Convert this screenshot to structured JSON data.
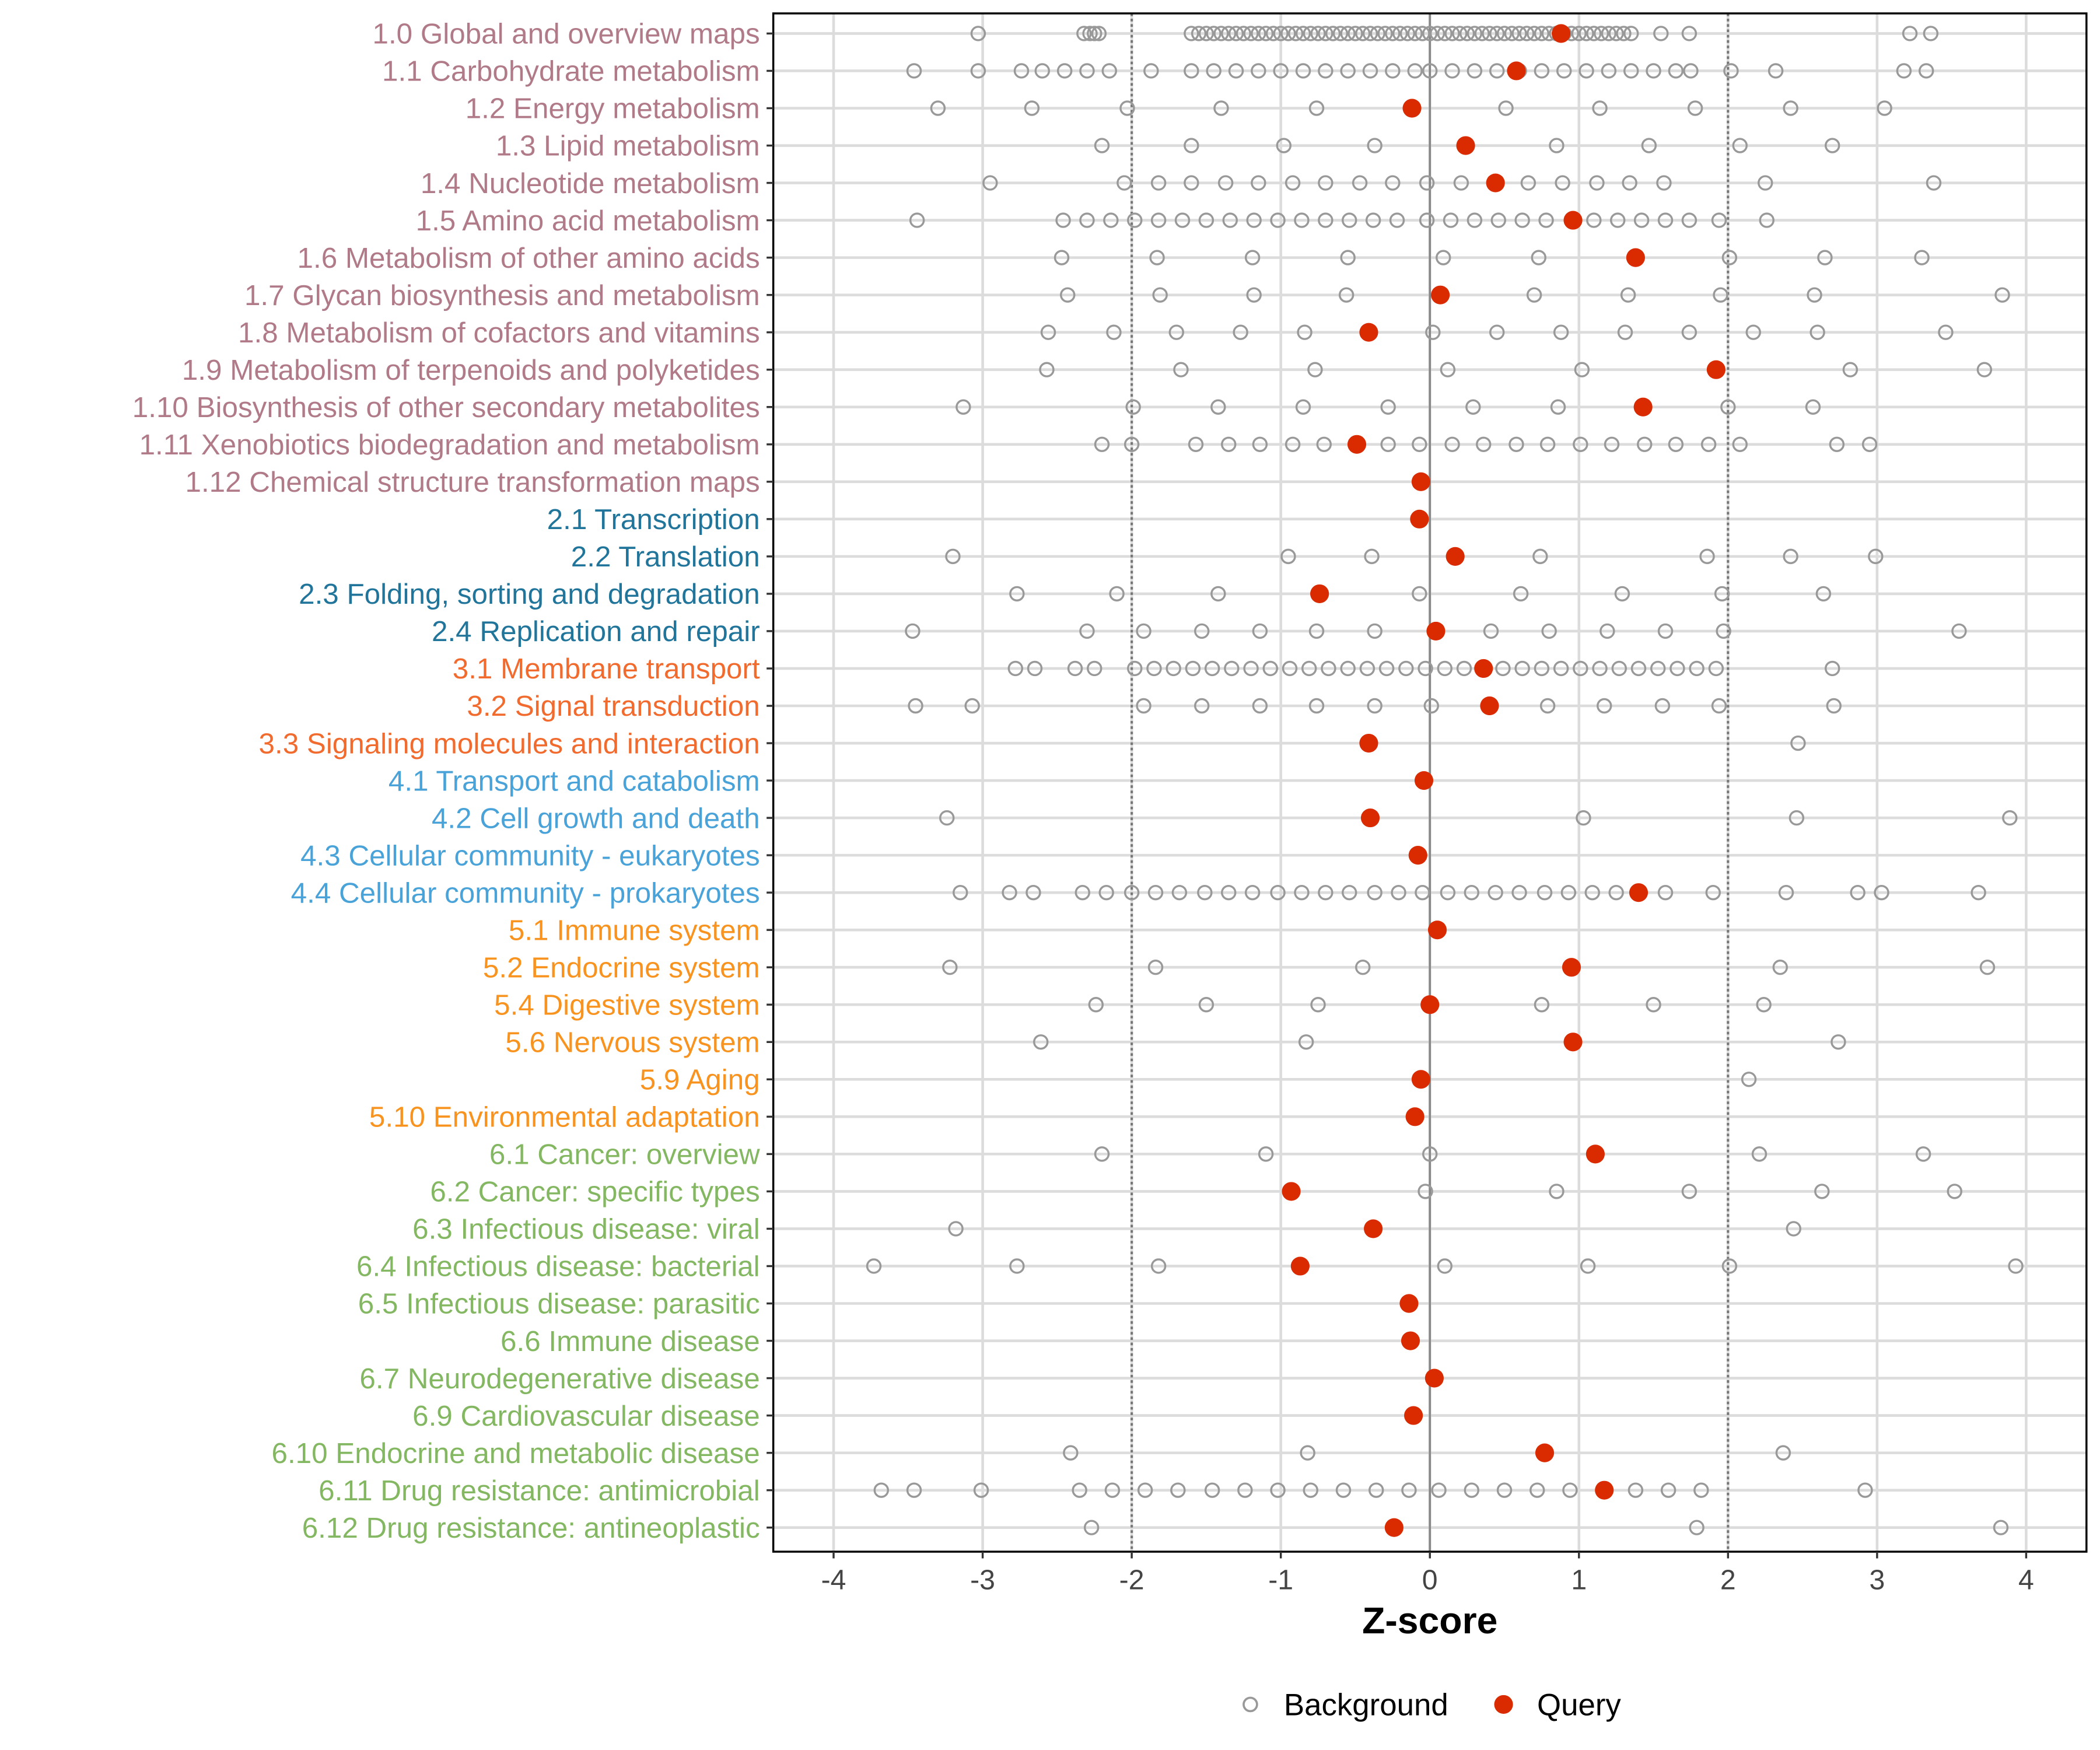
{
  "chart_data": {
    "type": "scatter",
    "xlabel": "Z-score",
    "ylabel": "",
    "xlim": [
      -4.4,
      4.4
    ],
    "x_ticks": [
      -4,
      -3,
      -2,
      -1,
      0,
      1,
      2,
      3,
      4
    ],
    "threshold_lines": [
      -2,
      2
    ],
    "grid": true,
    "legend": {
      "placement": "bottom",
      "entries": [
        "Background",
        "Query"
      ]
    },
    "colors": {
      "query": "#d92a00",
      "background": "#999999",
      "groups": {
        "1": "#b07a88",
        "2": "#22759a",
        "3": "#f26b2e",
        "4": "#4aa3d8",
        "5": "#f7931e",
        "6": "#84b761"
      }
    },
    "categories": [
      {
        "label": "1.0 Global and overview maps",
        "group": "1",
        "query": 0.88,
        "background": [
          -3.03,
          -2.32,
          -2.28,
          -2.25,
          -2.22,
          -1.6,
          -1.55,
          -1.5,
          -1.45,
          -1.4,
          -1.35,
          -1.3,
          -1.25,
          -1.2,
          -1.15,
          -1.1,
          -1.05,
          -1.0,
          -0.95,
          -0.9,
          -0.85,
          -0.8,
          -0.75,
          -0.7,
          -0.65,
          -0.6,
          -0.55,
          -0.5,
          -0.45,
          -0.4,
          -0.35,
          -0.3,
          -0.25,
          -0.2,
          -0.15,
          -0.1,
          -0.05,
          0.0,
          0.05,
          0.1,
          0.15,
          0.2,
          0.25,
          0.3,
          0.35,
          0.4,
          0.45,
          0.5,
          0.55,
          0.6,
          0.65,
          0.7,
          0.75,
          0.8,
          0.85,
          0.9,
          0.95,
          1.0,
          1.05,
          1.1,
          1.15,
          1.2,
          1.25,
          1.3,
          1.35,
          1.55,
          1.74,
          3.22,
          3.36
        ]
      },
      {
        "label": "1.1 Carbohydrate metabolism",
        "group": "1",
        "query": 0.58,
        "background": [
          -3.46,
          -3.03,
          -2.74,
          -2.6,
          -2.45,
          -2.3,
          -2.15,
          -1.87,
          -1.6,
          -1.45,
          -1.3,
          -1.15,
          -1.0,
          -0.85,
          -0.7,
          -0.55,
          -0.4,
          -0.25,
          -0.1,
          0.0,
          0.15,
          0.3,
          0.45,
          0.6,
          0.75,
          0.9,
          1.05,
          1.2,
          1.35,
          1.5,
          1.65,
          1.75,
          2.02,
          2.32,
          3.18,
          3.33
        ]
      },
      {
        "label": "1.2 Energy metabolism",
        "group": "1",
        "query": -0.12,
        "background": [
          -3.3,
          -2.67,
          -2.03,
          -1.4,
          -0.76,
          0.51,
          1.14,
          1.78,
          2.42,
          3.05
        ]
      },
      {
        "label": "1.3 Lipid metabolism",
        "group": "1",
        "query": 0.24,
        "background": [
          -2.2,
          -1.6,
          -0.98,
          -0.37,
          0.85,
          1.47,
          2.08,
          2.7
        ]
      },
      {
        "label": "1.4 Nucleotide metabolism",
        "group": "1",
        "query": 0.44,
        "background": [
          -2.95,
          -2.05,
          -1.82,
          -1.6,
          -1.37,
          -1.15,
          -0.92,
          -0.7,
          -0.47,
          -0.25,
          -0.02,
          0.21,
          0.66,
          0.89,
          1.12,
          1.34,
          1.57,
          2.25,
          3.38
        ]
      },
      {
        "label": "1.5 Amino acid metabolism",
        "group": "1",
        "query": 0.96,
        "background": [
          -3.44,
          -2.46,
          -2.3,
          -2.14,
          -1.98,
          -1.82,
          -1.66,
          -1.5,
          -1.34,
          -1.18,
          -1.02,
          -0.86,
          -0.7,
          -0.54,
          -0.38,
          -0.22,
          -0.02,
          0.14,
          0.3,
          0.46,
          0.62,
          0.78,
          1.1,
          1.26,
          1.42,
          1.58,
          1.74,
          1.94,
          2.26
        ]
      },
      {
        "label": "1.6 Metabolism of other amino acids",
        "group": "1",
        "query": 1.38,
        "background": [
          -2.47,
          -1.83,
          -1.19,
          -0.55,
          0.09,
          0.73,
          2.01,
          2.65,
          3.3
        ]
      },
      {
        "label": "1.7 Glycan biosynthesis and metabolism",
        "group": "1",
        "query": 0.07,
        "background": [
          -2.43,
          -1.81,
          -1.18,
          -0.56,
          0.7,
          1.33,
          1.95,
          2.58,
          3.84
        ]
      },
      {
        "label": "1.8 Metabolism of cofactors and vitamins",
        "group": "1",
        "query": -0.41,
        "background": [
          -2.56,
          -2.12,
          -1.7,
          -1.27,
          -0.84,
          0.02,
          0.45,
          0.88,
          1.31,
          1.74,
          2.17,
          2.6,
          3.46
        ]
      },
      {
        "label": "1.9 Metabolism of terpenoids and polyketides",
        "group": "1",
        "query": 1.92,
        "background": [
          -2.57,
          -1.67,
          -0.77,
          0.12,
          1.02,
          2.82,
          3.72
        ]
      },
      {
        "label": "1.10 Biosynthesis of other secondary metabolites",
        "group": "1",
        "query": 1.43,
        "background": [
          -3.13,
          -1.99,
          -1.42,
          -0.85,
          -0.28,
          0.29,
          0.86,
          2.0,
          2.57
        ]
      },
      {
        "label": "1.11 Xenobiotics biodegradation and metabolism",
        "group": "1",
        "query": -0.49,
        "background": [
          -2.2,
          -2.0,
          -1.57,
          -1.35,
          -1.14,
          -0.92,
          -0.71,
          -0.28,
          -0.07,
          0.15,
          0.36,
          0.58,
          0.79,
          1.01,
          1.22,
          1.44,
          1.65,
          1.87,
          2.08,
          2.73,
          2.95
        ]
      },
      {
        "label": "1.12 Chemical structure transformation maps",
        "group": "1",
        "query": -0.06,
        "background": []
      },
      {
        "label": "2.1 Transcription",
        "group": "2",
        "query": -0.07,
        "background": []
      },
      {
        "label": "2.2 Translation",
        "group": "2",
        "query": 0.17,
        "background": [
          -3.2,
          -0.95,
          -0.39,
          0.74,
          1.86,
          2.42,
          2.99
        ]
      },
      {
        "label": "2.3 Folding, sorting and degradation",
        "group": "2",
        "query": -0.74,
        "background": [
          -2.77,
          -2.1,
          -1.42,
          -0.07,
          0.61,
          1.29,
          1.96,
          2.64
        ]
      },
      {
        "label": "2.4 Replication and repair",
        "group": "2",
        "query": 0.04,
        "background": [
          -3.47,
          -2.3,
          -1.92,
          -1.53,
          -1.14,
          -0.76,
          -0.37,
          0.41,
          0.8,
          1.19,
          1.58,
          1.97,
          3.55
        ]
      },
      {
        "label": "3.1 Membrane transport",
        "group": "3",
        "query": 0.36,
        "background": [
          -2.78,
          -2.65,
          -2.38,
          -2.25,
          -1.98,
          -1.85,
          -1.72,
          -1.59,
          -1.46,
          -1.33,
          -1.2,
          -1.07,
          -0.94,
          -0.81,
          -0.68,
          -0.55,
          -0.42,
          -0.29,
          -0.16,
          -0.03,
          0.1,
          0.23,
          0.49,
          0.62,
          0.75,
          0.88,
          1.01,
          1.14,
          1.27,
          1.4,
          1.53,
          1.66,
          1.79,
          1.92,
          2.7
        ]
      },
      {
        "label": "3.2 Signal transduction",
        "group": "3",
        "query": 0.4,
        "background": [
          -3.45,
          -3.07,
          -1.92,
          -1.53,
          -1.14,
          -0.76,
          -0.37,
          0.01,
          0.79,
          1.17,
          1.56,
          1.94,
          2.71
        ]
      },
      {
        "label": "3.3 Signaling molecules and interaction",
        "group": "3",
        "query": -0.41,
        "background": [
          2.47
        ]
      },
      {
        "label": "4.1 Transport and catabolism",
        "group": "4",
        "query": -0.04,
        "background": []
      },
      {
        "label": "4.2 Cell growth and death",
        "group": "4",
        "query": -0.4,
        "background": [
          -3.24,
          1.03,
          2.46,
          3.89
        ]
      },
      {
        "label": "4.3 Cellular community - eukaryotes",
        "group": "4",
        "query": -0.08,
        "background": []
      },
      {
        "label": "4.4 Cellular community - prokaryotes",
        "group": "4",
        "query": 1.4,
        "background": [
          -3.15,
          -2.82,
          -2.66,
          -2.33,
          -2.17,
          -2.0,
          -1.84,
          -1.68,
          -1.51,
          -1.35,
          -1.19,
          -1.02,
          -0.86,
          -0.7,
          -0.54,
          -0.37,
          -0.21,
          -0.05,
          0.12,
          0.28,
          0.44,
          0.6,
          0.77,
          0.93,
          1.09,
          1.25,
          1.58,
          1.9,
          2.39,
          2.87,
          3.03,
          3.68
        ]
      },
      {
        "label": "5.1 Immune system",
        "group": "5",
        "query": 0.05,
        "background": []
      },
      {
        "label": "5.2 Endocrine system",
        "group": "5",
        "query": 0.95,
        "background": [
          -3.22,
          -1.84,
          -0.45,
          2.35,
          3.74
        ]
      },
      {
        "label": "5.4 Digestive system",
        "group": "5",
        "query": 0.0,
        "background": [
          -2.24,
          -1.5,
          -0.75,
          0.75,
          1.5,
          2.24
        ]
      },
      {
        "label": "5.6 Nervous system",
        "group": "5",
        "query": 0.96,
        "background": [
          -2.61,
          -0.83,
          2.74
        ]
      },
      {
        "label": "5.9 Aging",
        "group": "5",
        "query": -0.06,
        "background": [
          2.14
        ]
      },
      {
        "label": "5.10 Environmental adaptation",
        "group": "5",
        "query": -0.1,
        "background": []
      },
      {
        "label": "6.1 Cancer: overview",
        "group": "6",
        "query": 1.11,
        "background": [
          -2.2,
          -1.1,
          0.0,
          2.21,
          3.31
        ]
      },
      {
        "label": "6.2 Cancer: specific types",
        "group": "6",
        "query": -0.93,
        "background": [
          -0.03,
          0.85,
          1.74,
          2.63,
          3.52
        ]
      },
      {
        "label": "6.3 Infectious disease: viral",
        "group": "6",
        "query": -0.38,
        "background": [
          -3.18,
          2.44
        ]
      },
      {
        "label": "6.4 Infectious disease: bacterial",
        "group": "6",
        "query": -0.87,
        "background": [
          -3.73,
          -2.77,
          -1.82,
          0.1,
          1.06,
          2.01,
          3.93
        ]
      },
      {
        "label": "6.5 Infectious disease: parasitic",
        "group": "6",
        "query": -0.14,
        "background": []
      },
      {
        "label": "6.6 Immune disease",
        "group": "6",
        "query": -0.13,
        "background": []
      },
      {
        "label": "6.7 Neurodegenerative disease",
        "group": "6",
        "query": 0.03,
        "background": []
      },
      {
        "label": "6.9 Cardiovascular disease",
        "group": "6",
        "query": -0.11,
        "background": []
      },
      {
        "label": "6.10 Endocrine and metabolic disease",
        "group": "6",
        "query": 0.77,
        "background": [
          -2.41,
          -0.82,
          2.37
        ]
      },
      {
        "label": "6.11 Drug resistance: antimicrobial",
        "group": "6",
        "query": 1.17,
        "background": [
          -3.68,
          -3.46,
          -3.01,
          -2.35,
          -2.13,
          -1.91,
          -1.69,
          -1.46,
          -1.24,
          -1.02,
          -0.8,
          -0.58,
          -0.36,
          -0.14,
          0.06,
          0.28,
          0.5,
          0.72,
          0.94,
          1.38,
          1.6,
          1.82,
          2.92
        ]
      },
      {
        "label": "6.12 Drug resistance: antineoplastic",
        "group": "6",
        "query": -0.24,
        "background": [
          -2.27,
          1.79,
          3.83
        ]
      }
    ]
  }
}
